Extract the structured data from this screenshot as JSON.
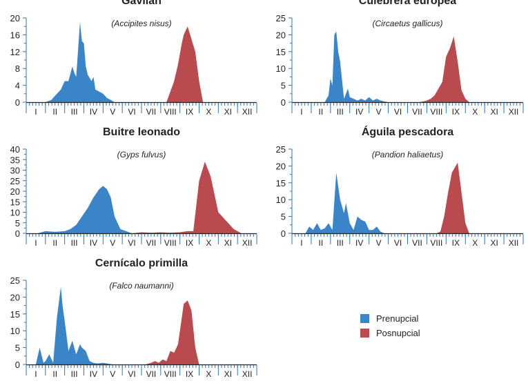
{
  "colors": {
    "prenupcial": "#3a85c8",
    "posnupcial": "#b94a4d",
    "axis": "#2a73b8",
    "baseline": "#222222"
  },
  "months": [
    "I",
    "II",
    "III",
    "IV",
    "V",
    "VI",
    "VII",
    "VIII",
    "IX",
    "X",
    "XI",
    "XII"
  ],
  "legend": [
    {
      "label": "Prenupcial",
      "color": "#3a85c8"
    },
    {
      "label": "Posnupcial",
      "color": "#b94a4d"
    }
  ],
  "chart_data": [
    {
      "type": "area",
      "title": "Gavilán",
      "subtitle": "(Accipites nisus)",
      "ylim": [
        0,
        20
      ],
      "yticks": [
        0,
        4,
        8,
        12,
        16,
        20
      ],
      "series": [
        {
          "name": "Prenupcial",
          "x": [
            2.0,
            2.3,
            2.5,
            2.8,
            3.0,
            3.2,
            3.4,
            3.5,
            3.6,
            3.8,
            3.9,
            4.0,
            4.1,
            4.2,
            4.4,
            4.5,
            4.6,
            4.8,
            5.0,
            5.2,
            5.4,
            5.6
          ],
          "values": [
            0,
            0.5,
            1.5,
            3,
            5,
            5,
            8.5,
            7,
            6,
            19,
            14.5,
            14,
            8.5,
            6.5,
            5,
            6,
            3,
            2.5,
            2,
            1,
            0.5,
            0
          ]
        },
        {
          "name": "Posnupcial",
          "x": [
            8.3,
            8.5,
            8.7,
            8.9,
            9.0,
            9.1,
            9.2,
            9.4,
            9.6,
            9.8,
            10.0,
            10.2
          ],
          "values": [
            0,
            2.5,
            5,
            9,
            11.5,
            14,
            16,
            18,
            15,
            12,
            5,
            0
          ]
        }
      ]
    },
    {
      "type": "area",
      "title": "Culebrera europea",
      "subtitle": "(Circaetus gallicus)",
      "ylim": [
        0,
        25
      ],
      "yticks": [
        0,
        5,
        10,
        15,
        20,
        25
      ],
      "series": [
        {
          "name": "Prenupcial",
          "x": [
            2.7,
            2.9,
            3.0,
            3.1,
            3.2,
            3.3,
            3.4,
            3.5,
            3.7,
            3.9,
            4.0,
            4.2,
            4.4,
            4.6,
            4.8,
            5.0,
            5.2,
            5.4,
            5.6,
            5.8,
            6.0
          ],
          "values": [
            0,
            2,
            7,
            5,
            20,
            21,
            15,
            12,
            1,
            4,
            1.5,
            1,
            0.5,
            1,
            0.5,
            1.5,
            0.5,
            1,
            0.5,
            0.2,
            0
          ]
        },
        {
          "name": "Posnupcial",
          "x": [
            7.6,
            7.8,
            8.0,
            8.2,
            8.4,
            8.6,
            8.8,
            9.0,
            9.2,
            9.4,
            9.6,
            9.8,
            10.0,
            10.2
          ],
          "values": [
            0,
            0.2,
            0.5,
            1,
            2,
            4,
            6,
            13.5,
            16,
            19.5,
            12,
            3.5,
            1,
            0
          ]
        }
      ]
    },
    {
      "type": "area",
      "title": "Buitre leonado",
      "subtitle": "(Gyps fulvus)",
      "ylim": [
        0,
        40
      ],
      "yticks": [
        0,
        5,
        10,
        15,
        20,
        25,
        30,
        35,
        40
      ],
      "series": [
        {
          "name": "Prenupcial",
          "x": [
            1.6,
            2.0,
            2.5,
            3.0,
            3.3,
            3.6,
            3.9,
            4.2,
            4.5,
            4.8,
            5.0,
            5.2,
            5.4,
            5.6,
            5.9,
            6.2,
            6.5
          ],
          "values": [
            0,
            1,
            0.7,
            1,
            2,
            4,
            8,
            12,
            17,
            21,
            22.5,
            21,
            17,
            8,
            2,
            1,
            0
          ]
        },
        {
          "name": "Posnupcial",
          "x": [
            6.5,
            7.0,
            7.5,
            8.0,
            8.5,
            9.0,
            9.4,
            9.7,
            10.0,
            10.3,
            10.6,
            11.0,
            11.4,
            11.8,
            12.2
          ],
          "values": [
            0,
            0.5,
            0.3,
            0.5,
            0.3,
            0.5,
            1,
            1,
            25,
            34,
            27,
            10,
            6,
            2,
            0
          ]
        }
      ]
    },
    {
      "type": "area",
      "title": "Águila pescadora",
      "subtitle": "(Pandion haliaetus)",
      "ylim": [
        0,
        25
      ],
      "yticks": [
        0,
        5,
        10,
        15,
        20,
        25
      ],
      "series": [
        {
          "name": "Prenupcial",
          "x": [
            1.7,
            1.9,
            2.1,
            2.3,
            2.5,
            2.7,
            2.9,
            3.1,
            3.3,
            3.5,
            3.7,
            3.8,
            4.0,
            4.2,
            4.4,
            4.6,
            4.8,
            5.0,
            5.2,
            5.4,
            5.6,
            5.8
          ],
          "values": [
            0,
            2,
            1,
            3,
            1,
            1.5,
            3,
            1,
            18,
            10,
            6,
            9,
            3,
            1,
            5,
            4,
            3.5,
            1,
            1,
            2,
            0.5,
            0
          ]
        },
        {
          "name": "Posnupcial",
          "x": [
            8.5,
            8.7,
            8.9,
            9.1,
            9.3,
            9.5,
            9.6,
            9.8,
            10.0,
            10.2
          ],
          "values": [
            0,
            0.5,
            5,
            12,
            18,
            20,
            21,
            12,
            3,
            0
          ]
        }
      ]
    },
    {
      "type": "area",
      "title": "Cernícalo primilla",
      "subtitle": "(Falco naumanni)",
      "ylim": [
        0,
        25
      ],
      "yticks": [
        0,
        5,
        10,
        15,
        20,
        25
      ],
      "series": [
        {
          "name": "Prenupcial",
          "x": [
            1.5,
            1.7,
            1.9,
            2.0,
            2.2,
            2.4,
            2.6,
            2.8,
            2.9,
            3.0,
            3.2,
            3.4,
            3.6,
            3.8,
            3.9,
            4.1,
            4.3,
            4.5,
            4.7,
            5.0,
            5.3,
            5.5
          ],
          "values": [
            0,
            5,
            0.5,
            1,
            3,
            0.5,
            14,
            23,
            17,
            13,
            4,
            7,
            3,
            6,
            5,
            4,
            1,
            0.5,
            0.3,
            0.5,
            0.2,
            0
          ]
        },
        {
          "name": "Posnupcial",
          "x": [
            7.2,
            7.5,
            7.7,
            7.9,
            8.1,
            8.3,
            8.5,
            8.7,
            8.9,
            9.0,
            9.2,
            9.4,
            9.6,
            9.8,
            10.0
          ],
          "values": [
            0,
            0.5,
            1,
            0.5,
            1.5,
            1,
            4,
            3.5,
            6,
            10,
            18,
            19,
            16,
            5,
            0
          ]
        }
      ]
    }
  ]
}
